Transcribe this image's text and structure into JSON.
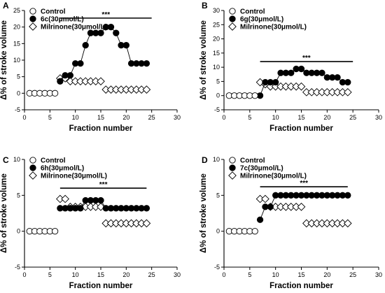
{
  "chart_data": [
    {
      "type": "line",
      "panel_label": "A",
      "xlabel": "Fraction number",
      "ylabel": "Δ% of stroke volume",
      "xlim": [
        0,
        30
      ],
      "ylim": [
        -5,
        25
      ],
      "xticks": [
        0,
        5,
        10,
        15,
        20,
        25,
        30
      ],
      "yticks": [
        -5,
        0,
        5,
        10,
        15,
        20,
        25
      ],
      "significance": {
        "label": "***",
        "x_start": 7,
        "x_end": 25,
        "y": 22.7
      },
      "series": [
        {
          "name": "Control",
          "marker": "circle-open",
          "connected": false,
          "x": [
            1,
            2,
            3,
            4,
            5,
            6
          ],
          "y": [
            0,
            0,
            0,
            0,
            0,
            0
          ]
        },
        {
          "name": "6c(30μmol/L)",
          "marker": "circle-filled",
          "connected": true,
          "x": [
            7,
            8,
            9,
            10,
            11,
            12,
            13,
            14,
            15,
            16,
            17,
            18,
            19,
            20,
            21,
            22,
            23,
            24
          ],
          "y": [
            3.6,
            5.4,
            5.4,
            9.0,
            9.0,
            14.5,
            18.2,
            18.2,
            18.2,
            20.0,
            20.0,
            18.2,
            14.5,
            14.5,
            9.0,
            9.0,
            9.0,
            9.0
          ]
        },
        {
          "name": "Milrinone(30μmol/L)",
          "marker": "diamond-open",
          "connected": false,
          "x": [
            7,
            8,
            9,
            10,
            11,
            12,
            13,
            14,
            15,
            16,
            17,
            18,
            19,
            20,
            21,
            22,
            23,
            24
          ],
          "y": [
            4.5,
            4.5,
            3.6,
            3.6,
            3.6,
            3.6,
            3.6,
            3.6,
            3.6,
            1.1,
            1.1,
            1.1,
            1.1,
            1.1,
            1.1,
            1.1,
            1.1,
            1.1
          ]
        }
      ]
    },
    {
      "type": "line",
      "panel_label": "B",
      "xlabel": "Fraction number",
      "ylabel": "Δ% of stroke volume",
      "xlim": [
        0,
        30
      ],
      "ylim": [
        -5,
        30
      ],
      "xticks": [
        0,
        5,
        10,
        15,
        20,
        25,
        30
      ],
      "yticks": [
        -5,
        0,
        5,
        10,
        15,
        20,
        25,
        30
      ],
      "significance": {
        "label": "***",
        "x_start": 7,
        "x_end": 25,
        "y": 12.0
      },
      "series": [
        {
          "name": "Control",
          "marker": "circle-open",
          "connected": false,
          "x": [
            1,
            2,
            3,
            4,
            5,
            6
          ],
          "y": [
            0,
            0,
            0,
            0,
            0,
            0
          ]
        },
        {
          "name": "6g(30μmol/L)",
          "marker": "circle-filled",
          "connected": true,
          "x": [
            7,
            8,
            9,
            10,
            11,
            12,
            13,
            14,
            15,
            16,
            17,
            18,
            19,
            20,
            21,
            22,
            23,
            24
          ],
          "y": [
            0,
            4.7,
            4.7,
            4.7,
            8.0,
            8.0,
            8.0,
            9.4,
            9.4,
            8.0,
            8.0,
            8.0,
            8.0,
            6.4,
            6.4,
            6.4,
            4.7,
            4.7
          ]
        },
        {
          "name": "Milrinone(30μmol/L)",
          "marker": "diamond-open",
          "connected": false,
          "x": [
            7,
            8,
            9,
            10,
            11,
            12,
            13,
            14,
            15,
            16,
            17,
            18,
            19,
            20,
            21,
            22,
            23,
            24
          ],
          "y": [
            4.7,
            4.0,
            3.2,
            3.2,
            3.2,
            3.2,
            3.2,
            3.2,
            3.2,
            1.2,
            1.2,
            1.2,
            1.2,
            1.2,
            1.2,
            1.2,
            1.2,
            1.2
          ]
        }
      ]
    },
    {
      "type": "line",
      "panel_label": "C",
      "xlabel": "Fraction number",
      "ylabel": "Δ% of stroke volume",
      "xlim": [
        0,
        30
      ],
      "ylim": [
        -5,
        10
      ],
      "xticks": [
        0,
        5,
        10,
        15,
        20,
        25,
        30
      ],
      "yticks": [
        -5,
        0,
        5,
        10
      ],
      "significance": {
        "label": "***",
        "x_start": 7,
        "x_end": 24,
        "y": 6.0
      },
      "series": [
        {
          "name": "Control",
          "marker": "circle-open",
          "connected": false,
          "x": [
            1,
            2,
            3,
            4,
            5,
            6
          ],
          "y": [
            0,
            0,
            0,
            0,
            0,
            0
          ]
        },
        {
          "name": "6h(30μmol/L)",
          "marker": "circle-filled",
          "connected": true,
          "x": [
            7,
            8,
            9,
            10,
            11,
            12,
            13,
            14,
            15,
            16,
            17,
            18,
            19,
            20,
            21,
            22,
            23,
            24
          ],
          "y": [
            3.2,
            3.2,
            3.2,
            3.2,
            3.2,
            4.3,
            4.3,
            4.3,
            4.3,
            3.2,
            3.2,
            3.2,
            3.2,
            3.2,
            3.2,
            3.2,
            3.2,
            3.2
          ]
        },
        {
          "name": "Milrinone(30μmol/L)",
          "marker": "diamond-open",
          "connected": false,
          "x": [
            7,
            8,
            9,
            10,
            11,
            12,
            13,
            14,
            15,
            16,
            17,
            18,
            19,
            20,
            21,
            22,
            23,
            24
          ],
          "y": [
            4.5,
            4.5,
            3.4,
            3.4,
            3.4,
            3.4,
            3.4,
            3.4,
            3.4,
            1.1,
            1.1,
            1.1,
            1.1,
            1.1,
            1.1,
            1.1,
            1.1,
            1.1
          ]
        }
      ]
    },
    {
      "type": "line",
      "panel_label": "D",
      "xlabel": "Fraction number",
      "ylabel": "Δ% of stroke volume",
      "xlim": [
        0,
        30
      ],
      "ylim": [
        -5,
        10
      ],
      "xticks": [
        0,
        5,
        10,
        15,
        20,
        25,
        30
      ],
      "yticks": [
        -5,
        0,
        5,
        10
      ],
      "significance": {
        "label": "***",
        "x_start": 7,
        "x_end": 24,
        "y": 6.2
      },
      "series": [
        {
          "name": "Control",
          "marker": "circle-open",
          "connected": false,
          "x": [
            1,
            2,
            3,
            4,
            5,
            6
          ],
          "y": [
            0,
            0,
            0,
            0,
            0,
            0
          ]
        },
        {
          "name": "7c(30μmol/L)",
          "marker": "circle-filled",
          "connected": true,
          "x": [
            7,
            8,
            9,
            10,
            11,
            12,
            13,
            14,
            15,
            16,
            17,
            18,
            19,
            20,
            21,
            22,
            23,
            24
          ],
          "y": [
            1.6,
            3.4,
            3.4,
            5.0,
            5.0,
            5.0,
            5.0,
            5.0,
            5.0,
            5.0,
            5.0,
            5.0,
            5.0,
            5.0,
            5.0,
            5.0,
            5.0,
            5.0
          ]
        },
        {
          "name": "Milrinone(30μmol/L)",
          "marker": "diamond-open",
          "connected": false,
          "x": [
            7,
            8,
            9,
            10,
            11,
            12,
            13,
            14,
            15,
            16,
            17,
            18,
            19,
            20,
            21,
            22,
            23,
            24
          ],
          "y": [
            4.5,
            4.5,
            3.4,
            3.4,
            3.4,
            3.4,
            3.4,
            3.4,
            3.4,
            1.1,
            1.1,
            1.1,
            1.1,
            1.1,
            1.1,
            1.1,
            1.1,
            1.1
          ]
        }
      ]
    }
  ]
}
